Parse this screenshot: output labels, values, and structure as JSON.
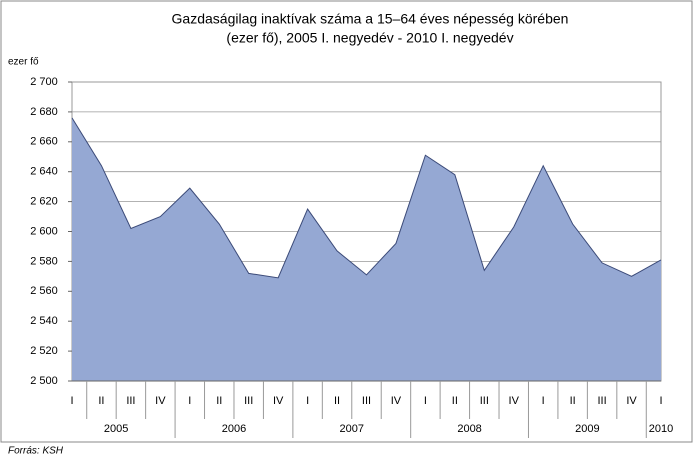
{
  "chart_data": {
    "type": "area",
    "title": "Gazdaságilag inaktívak száma a 15–64 éves népesség körében",
    "subtitle": "(ezer fő), 2005 I. negyedév - 2010 I. negyedév",
    "y_axis_label": "ezer fő",
    "source": "Forrás: KSH",
    "categories": [
      "I",
      "II",
      "III",
      "IV",
      "I",
      "II",
      "III",
      "IV",
      "I",
      "II",
      "III",
      "IV",
      "I",
      "II",
      "III",
      "IV",
      "I",
      "II",
      "III",
      "IV",
      "I"
    ],
    "years": [
      "2005",
      "2006",
      "2007",
      "2008",
      "2009",
      "2010"
    ],
    "series": [
      {
        "name": "Gazdaságilag inaktívak",
        "color": "#95a8d3",
        "values": [
          2676,
          2644,
          2602,
          2610,
          2629,
          2605,
          2572,
          2569,
          2615,
          2587,
          2571,
          2592,
          2651,
          2638,
          2574,
          2603,
          2644,
          2605,
          2579,
          2570,
          2581
        ]
      }
    ],
    "ylim": [
      2500,
      2700
    ],
    "yticks": [
      {
        "value": 2500,
        "label": "2 500"
      },
      {
        "value": 2520,
        "label": "2 520"
      },
      {
        "value": 2540,
        "label": "2 540"
      },
      {
        "value": 2560,
        "label": "2 560"
      },
      {
        "value": 2580,
        "label": "2 580"
      },
      {
        "value": 2600,
        "label": "2 600"
      },
      {
        "value": 2620,
        "label": "2 620"
      },
      {
        "value": 2640,
        "label": "2 640"
      },
      {
        "value": 2660,
        "label": "2 660"
      },
      {
        "value": 2680,
        "label": "2 680"
      },
      {
        "value": 2700,
        "label": "2 700"
      }
    ],
    "grid": true
  }
}
